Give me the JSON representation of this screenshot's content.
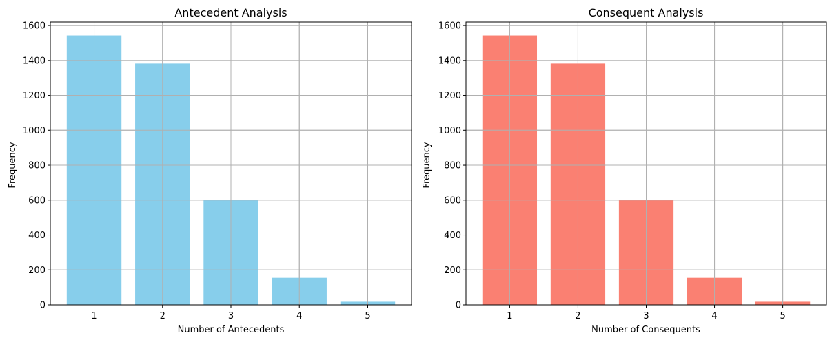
{
  "chart_data": [
    {
      "type": "bar",
      "title": "Antecedent Analysis",
      "xlabel": "Number of Antecedents",
      "ylabel": "Frequency",
      "categories": [
        "1",
        "2",
        "3",
        "4",
        "5"
      ],
      "values": [
        1543,
        1382,
        602,
        155,
        18
      ],
      "color": "#87CEEB",
      "ylim": [
        0,
        1620
      ],
      "yticks": [
        0,
        200,
        400,
        600,
        800,
        1000,
        1200,
        1400,
        1600
      ],
      "grid": true
    },
    {
      "type": "bar",
      "title": "Consequent Analysis",
      "xlabel": "Number of Consequents",
      "ylabel": "Frequency",
      "categories": [
        "1",
        "2",
        "3",
        "4",
        "5"
      ],
      "values": [
        1543,
        1382,
        602,
        155,
        18
      ],
      "color": "#FA8072",
      "ylim": [
        0,
        1620
      ],
      "yticks": [
        0,
        200,
        400,
        600,
        800,
        1000,
        1200,
        1400,
        1600
      ],
      "grid": true
    }
  ]
}
